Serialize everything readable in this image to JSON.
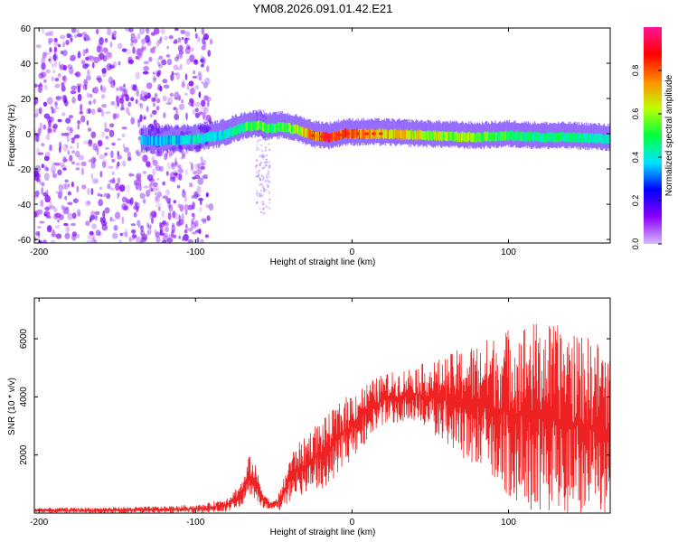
{
  "title": "YM08.2026.091.01.42.E21",
  "chart_data": [
    {
      "type": "heatmap",
      "name": "spectrogram",
      "xlabel": "Height of straight line (km)",
      "ylabel": "Frequency (Hz)",
      "xlim": [
        -203,
        165
      ],
      "ylim": [
        -62,
        60
      ],
      "xticks": [
        -200,
        -100,
        0,
        100
      ],
      "yticks": [
        -60,
        -40,
        -20,
        0,
        20,
        40,
        60
      ],
      "colorbar": {
        "label": "Normalized spectral amplitude",
        "range": [
          0,
          1
        ],
        "ticks": [
          "0.0",
          "0.2",
          "0.4",
          "0.6",
          "0.8"
        ],
        "tick_values": [
          0.0,
          0.2,
          0.4,
          0.6,
          0.8
        ],
        "colors": [
          "#d8b8ff",
          "#8a00ff",
          "#0000ff",
          "#00e5ff",
          "#00ff40",
          "#bfff00",
          "#ff8c00",
          "#ff0000",
          "#ff1493"
        ]
      },
      "ridge": {
        "description": "frequency of strongest signal vs height",
        "x": [
          -135,
          -120,
          -100,
          -85,
          -75,
          -68,
          -60,
          -55,
          -45,
          -35,
          -25,
          -15,
          -5,
          5,
          20,
          50,
          80,
          100,
          120,
          140,
          165
        ],
        "y": [
          -4,
          -4,
          -3,
          -1,
          2,
          4,
          5,
          3,
          4,
          2,
          -1,
          -2,
          0,
          0,
          0,
          -1,
          -2,
          -1,
          -2,
          -2,
          -3
        ],
        "peak_amplitude": [
          0.35,
          0.35,
          0.4,
          0.4,
          0.45,
          0.5,
          0.55,
          0.5,
          0.5,
          0.6,
          0.8,
          0.85,
          0.85,
          0.75,
          0.7,
          0.6,
          0.55,
          0.5,
          0.45,
          0.45,
          0.4
        ]
      },
      "noise_region": {
        "x_from": -203,
        "x_to": -90,
        "amplitude": 0.15
      }
    },
    {
      "type": "line",
      "name": "snr",
      "xlabel": "Height of straight line (km)",
      "ylabel": "SNR (10 * v/v)",
      "xlim": [
        -203,
        165
      ],
      "ylim": [
        0,
        7400
      ],
      "xticks": [
        -200,
        -100,
        0,
        100
      ],
      "yticks": [
        2000,
        4000,
        6000
      ],
      "series": [
        {
          "name": "SNR",
          "color": "#ee2222",
          "envelope_x": [
            -203,
            -160,
            -120,
            -95,
            -80,
            -72,
            -68,
            -66,
            -62,
            -58,
            -54,
            -50,
            -45,
            -40,
            -35,
            -30,
            -25,
            -20,
            -15,
            -10,
            0,
            10,
            20,
            30,
            40,
            50,
            60,
            70,
            80,
            90,
            100,
            110,
            120,
            130,
            140,
            150,
            160,
            165
          ],
          "envelope_mean": [
            100,
            100,
            120,
            150,
            300,
            600,
            900,
            1300,
            1100,
            600,
            350,
            250,
            500,
            1200,
            1500,
            1600,
            1900,
            2000,
            2200,
            2500,
            3000,
            3500,
            3900,
            4000,
            4100,
            4000,
            3900,
            3800,
            3700,
            3600,
            3500,
            3400,
            3300,
            3200,
            3100,
            3000,
            2900,
            2800
          ],
          "envelope_amp": [
            80,
            100,
            120,
            150,
            250,
            400,
            500,
            700,
            600,
            400,
            200,
            150,
            400,
            800,
            900,
            1000,
            1100,
            1200,
            1200,
            1200,
            1200,
            1000,
            900,
            900,
            1000,
            1200,
            1500,
            1900,
            2200,
            2500,
            2900,
            3200,
            3300,
            3300,
            3200,
            3100,
            3000,
            2800
          ]
        }
      ]
    }
  ]
}
